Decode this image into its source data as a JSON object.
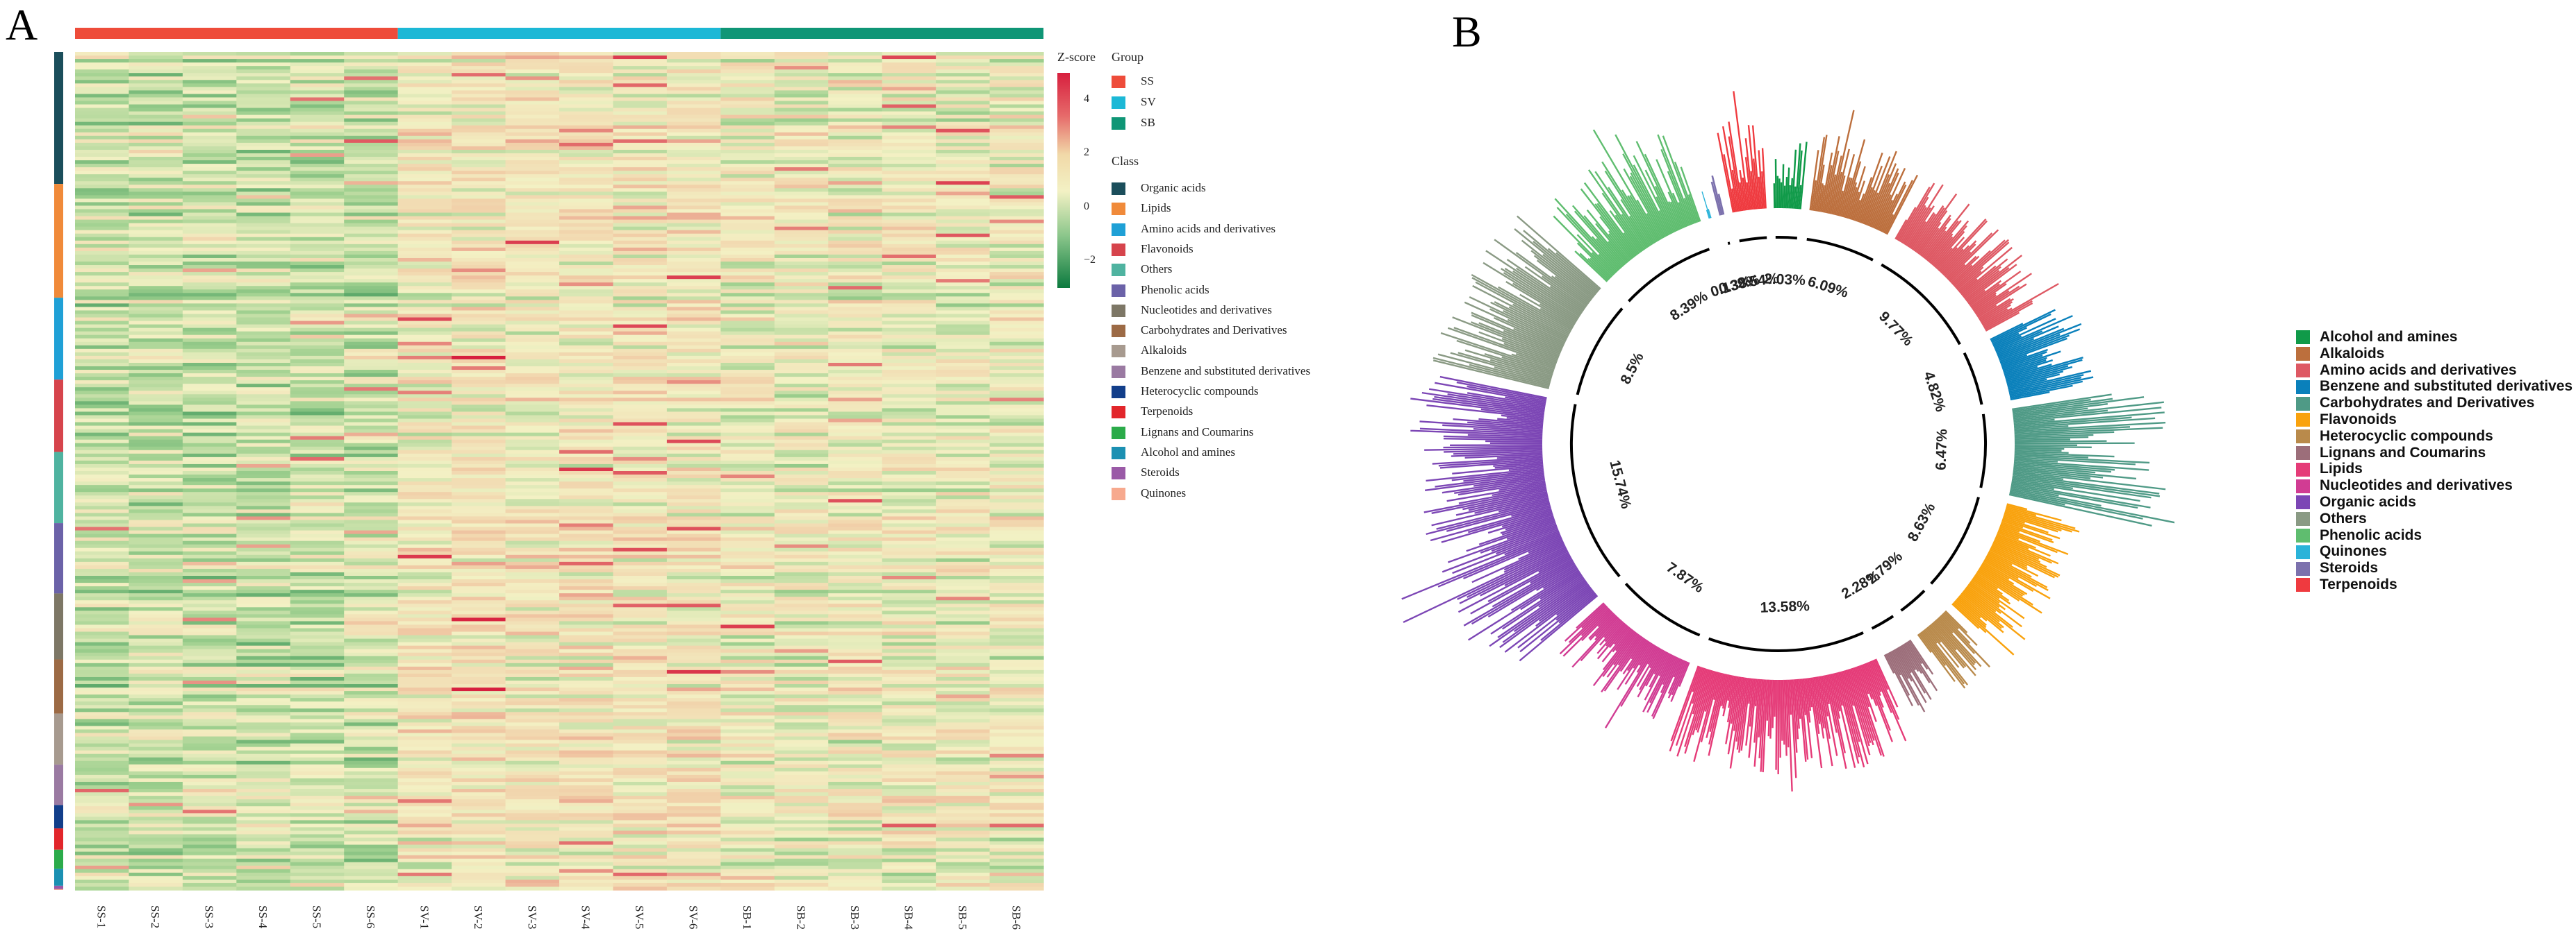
{
  "panel_labels": {
    "a": "A",
    "b": "B"
  },
  "chart_data": [
    {
      "type": "heatmap",
      "panel": "A",
      "title": "",
      "columns": [
        "SS-1",
        "SS-2",
        "SS-3",
        "SS-4",
        "SS-5",
        "SS-6",
        "SV-1",
        "SV-2",
        "SV-3",
        "SV-4",
        "SV-5",
        "SV-6",
        "SB-1",
        "SB-2",
        "SB-3",
        "SB-4",
        "SB-5",
        "SB-6"
      ],
      "groups": [
        {
          "name": "SS",
          "color": "#ee4c3a",
          "count": 6
        },
        {
          "name": "SV",
          "color": "#1cb8d6",
          "count": 6
        },
        {
          "name": "SB",
          "color": "#0f9676",
          "count": 6
        }
      ],
      "zscore": {
        "title": "Z-score",
        "ticks": [
          4,
          2,
          0,
          -2
        ],
        "range": [
          -3,
          5
        ],
        "colors": [
          "#0b7a3e",
          "#f3f1c4",
          "#d71f3e"
        ]
      },
      "legend_group_title": "Group",
      "legend_class_title": "Class",
      "classes": [
        {
          "name": "Organic acids",
          "color": "#1b4e5b",
          "share": 15.74
        },
        {
          "name": "Lipids",
          "color": "#f08a3a",
          "share": 13.58
        },
        {
          "name": "Amino acids and derivatives",
          "color": "#1fa0d6",
          "share": 9.77
        },
        {
          "name": "Flavonoids",
          "color": "#d6444c",
          "share": 8.63
        },
        {
          "name": "Others",
          "color": "#4fb3a0",
          "share": 8.5
        },
        {
          "name": "Phenolic acids",
          "color": "#6b62a8",
          "share": 8.39
        },
        {
          "name": "Nucleotides and derivatives",
          "color": "#7d7766",
          "share": 7.87
        },
        {
          "name": "Carbohydrates and Derivatives",
          "color": "#9c6a45",
          "share": 6.47
        },
        {
          "name": "Alkaloids",
          "color": "#a79a8f",
          "share": 6.09
        },
        {
          "name": "Benzene and substituted derivatives",
          "color": "#9a7aa2",
          "share": 4.82
        },
        {
          "name": "Heterocyclic compounds",
          "color": "#123e8a",
          "share": 2.79
        },
        {
          "name": "Terpenoids",
          "color": "#e2262b",
          "share": 2.54
        },
        {
          "name": "Lignans and Coumarins",
          "color": "#2bab4a",
          "share": 2.28
        },
        {
          "name": "Alcohol and amines",
          "color": "#1b90b2",
          "share": 2.03
        },
        {
          "name": "Steroids",
          "color": "#9a5aa7",
          "share": 0.38
        },
        {
          "name": "Quinones",
          "color": "#f7a98e",
          "share": 0.13
        }
      ]
    },
    {
      "type": "circular-bar",
      "panel": "B",
      "title": "",
      "segments": [
        {
          "name": "Alcohol and amines",
          "color": "#109a49",
          "percent": "2.03%",
          "value": 2.03,
          "max": 0.4
        },
        {
          "name": "Alkaloids",
          "color": "#bc6f3d",
          "percent": "6.09%",
          "value": 6.09,
          "max": 0.45
        },
        {
          "name": "Amino acids and derivatives",
          "color": "#de5863",
          "percent": "9.77%",
          "value": 9.77,
          "max": 0.4
        },
        {
          "name": "Benzene and substituted derivatives",
          "color": "#0a80bb",
          "percent": "4.82%",
          "value": 4.82,
          "max": 0.5
        },
        {
          "name": "Carbohydrates and Derivatives",
          "color": "#4f9a86",
          "percent": "6.47%",
          "value": 6.47,
          "max": 0.85
        },
        {
          "name": "Flavonoids",
          "color": "#f9a20d",
          "percent": "8.63%",
          "value": 8.63,
          "max": 0.45
        },
        {
          "name": "Heterocyclic compounds",
          "color": "#b98a4b",
          "percent": "2.79%",
          "value": 2.79,
          "max": 0.4
        },
        {
          "name": "Lignans and Coumarins",
          "color": "#9c6e7a",
          "percent": "2.28%",
          "value": 2.28,
          "max": 0.4
        },
        {
          "name": "Lipids",
          "color": "#e53b78",
          "percent": "13.58%",
          "value": 13.58,
          "max": 0.55
        },
        {
          "name": "Nucleotides and derivatives",
          "color": "#d13c93",
          "percent": "7.87%",
          "value": 7.87,
          "max": 0.4
        },
        {
          "name": "Organic acids",
          "color": "#7c46b5",
          "percent": "15.74%",
          "value": 15.74,
          "max": 0.75
        },
        {
          "name": "Others",
          "color": "#8a9a84",
          "percent": "8.5%",
          "value": 8.5,
          "max": 0.7
        },
        {
          "name": "Phenolic acids",
          "color": "#5fbd6f",
          "percent": "8.39%",
          "value": 8.39,
          "max": 0.55
        },
        {
          "name": "Quinones",
          "color": "#2ab3d9",
          "percent": "0.13%",
          "value": 0.13,
          "max": 0.15
        },
        {
          "name": "Steroids",
          "color": "#7c71ad",
          "percent": "0.38%",
          "value": 0.38,
          "max": 0.4
        },
        {
          "name": "Terpenoids",
          "color": "#ef3a3f",
          "percent": "2.54%",
          "value": 2.54,
          "max": 0.5
        }
      ]
    }
  ]
}
